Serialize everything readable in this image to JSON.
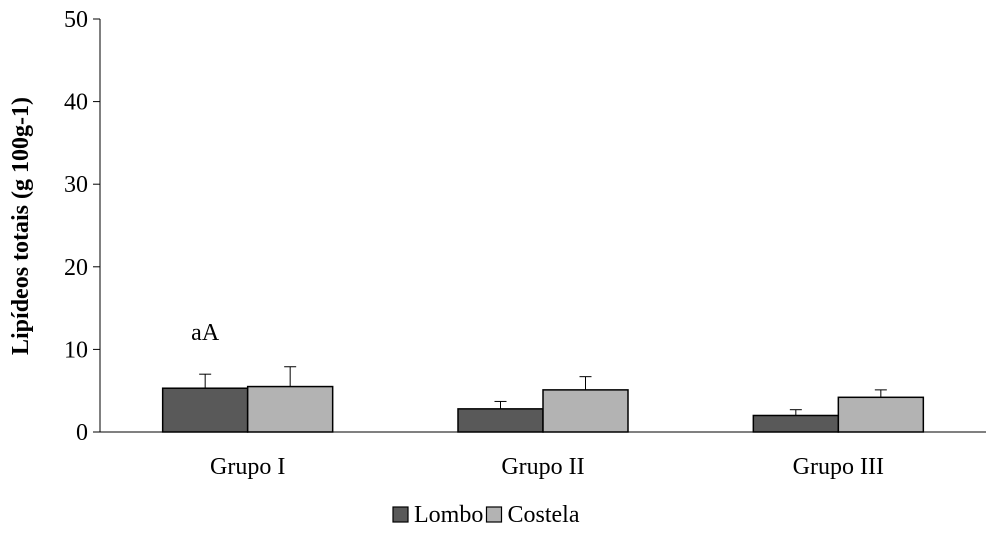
{
  "chart_data": {
    "type": "bar",
    "categories": [
      "Grupo I",
      "Grupo II",
      "Grupo III"
    ],
    "series": [
      {
        "name": "Lombo",
        "values": [
          5.3,
          2.8,
          2.0
        ],
        "errors": [
          1.7,
          0.9,
          0.7
        ],
        "color": "#595959"
      },
      {
        "name": "Costela",
        "values": [
          5.5,
          5.1,
          4.2
        ],
        "errors": [
          2.4,
          1.6,
          0.9
        ],
        "color": "#b3b3b3"
      }
    ],
    "ylabel": "Lipídeos totais (g 100g-1)",
    "xlabel": "",
    "ylim": [
      0,
      50
    ],
    "yticks": [
      0,
      10,
      20,
      30,
      40,
      50
    ],
    "annotations": [
      {
        "category": "Grupo I",
        "text": "aA"
      }
    ],
    "legend_position": "bottom",
    "grid": false
  }
}
